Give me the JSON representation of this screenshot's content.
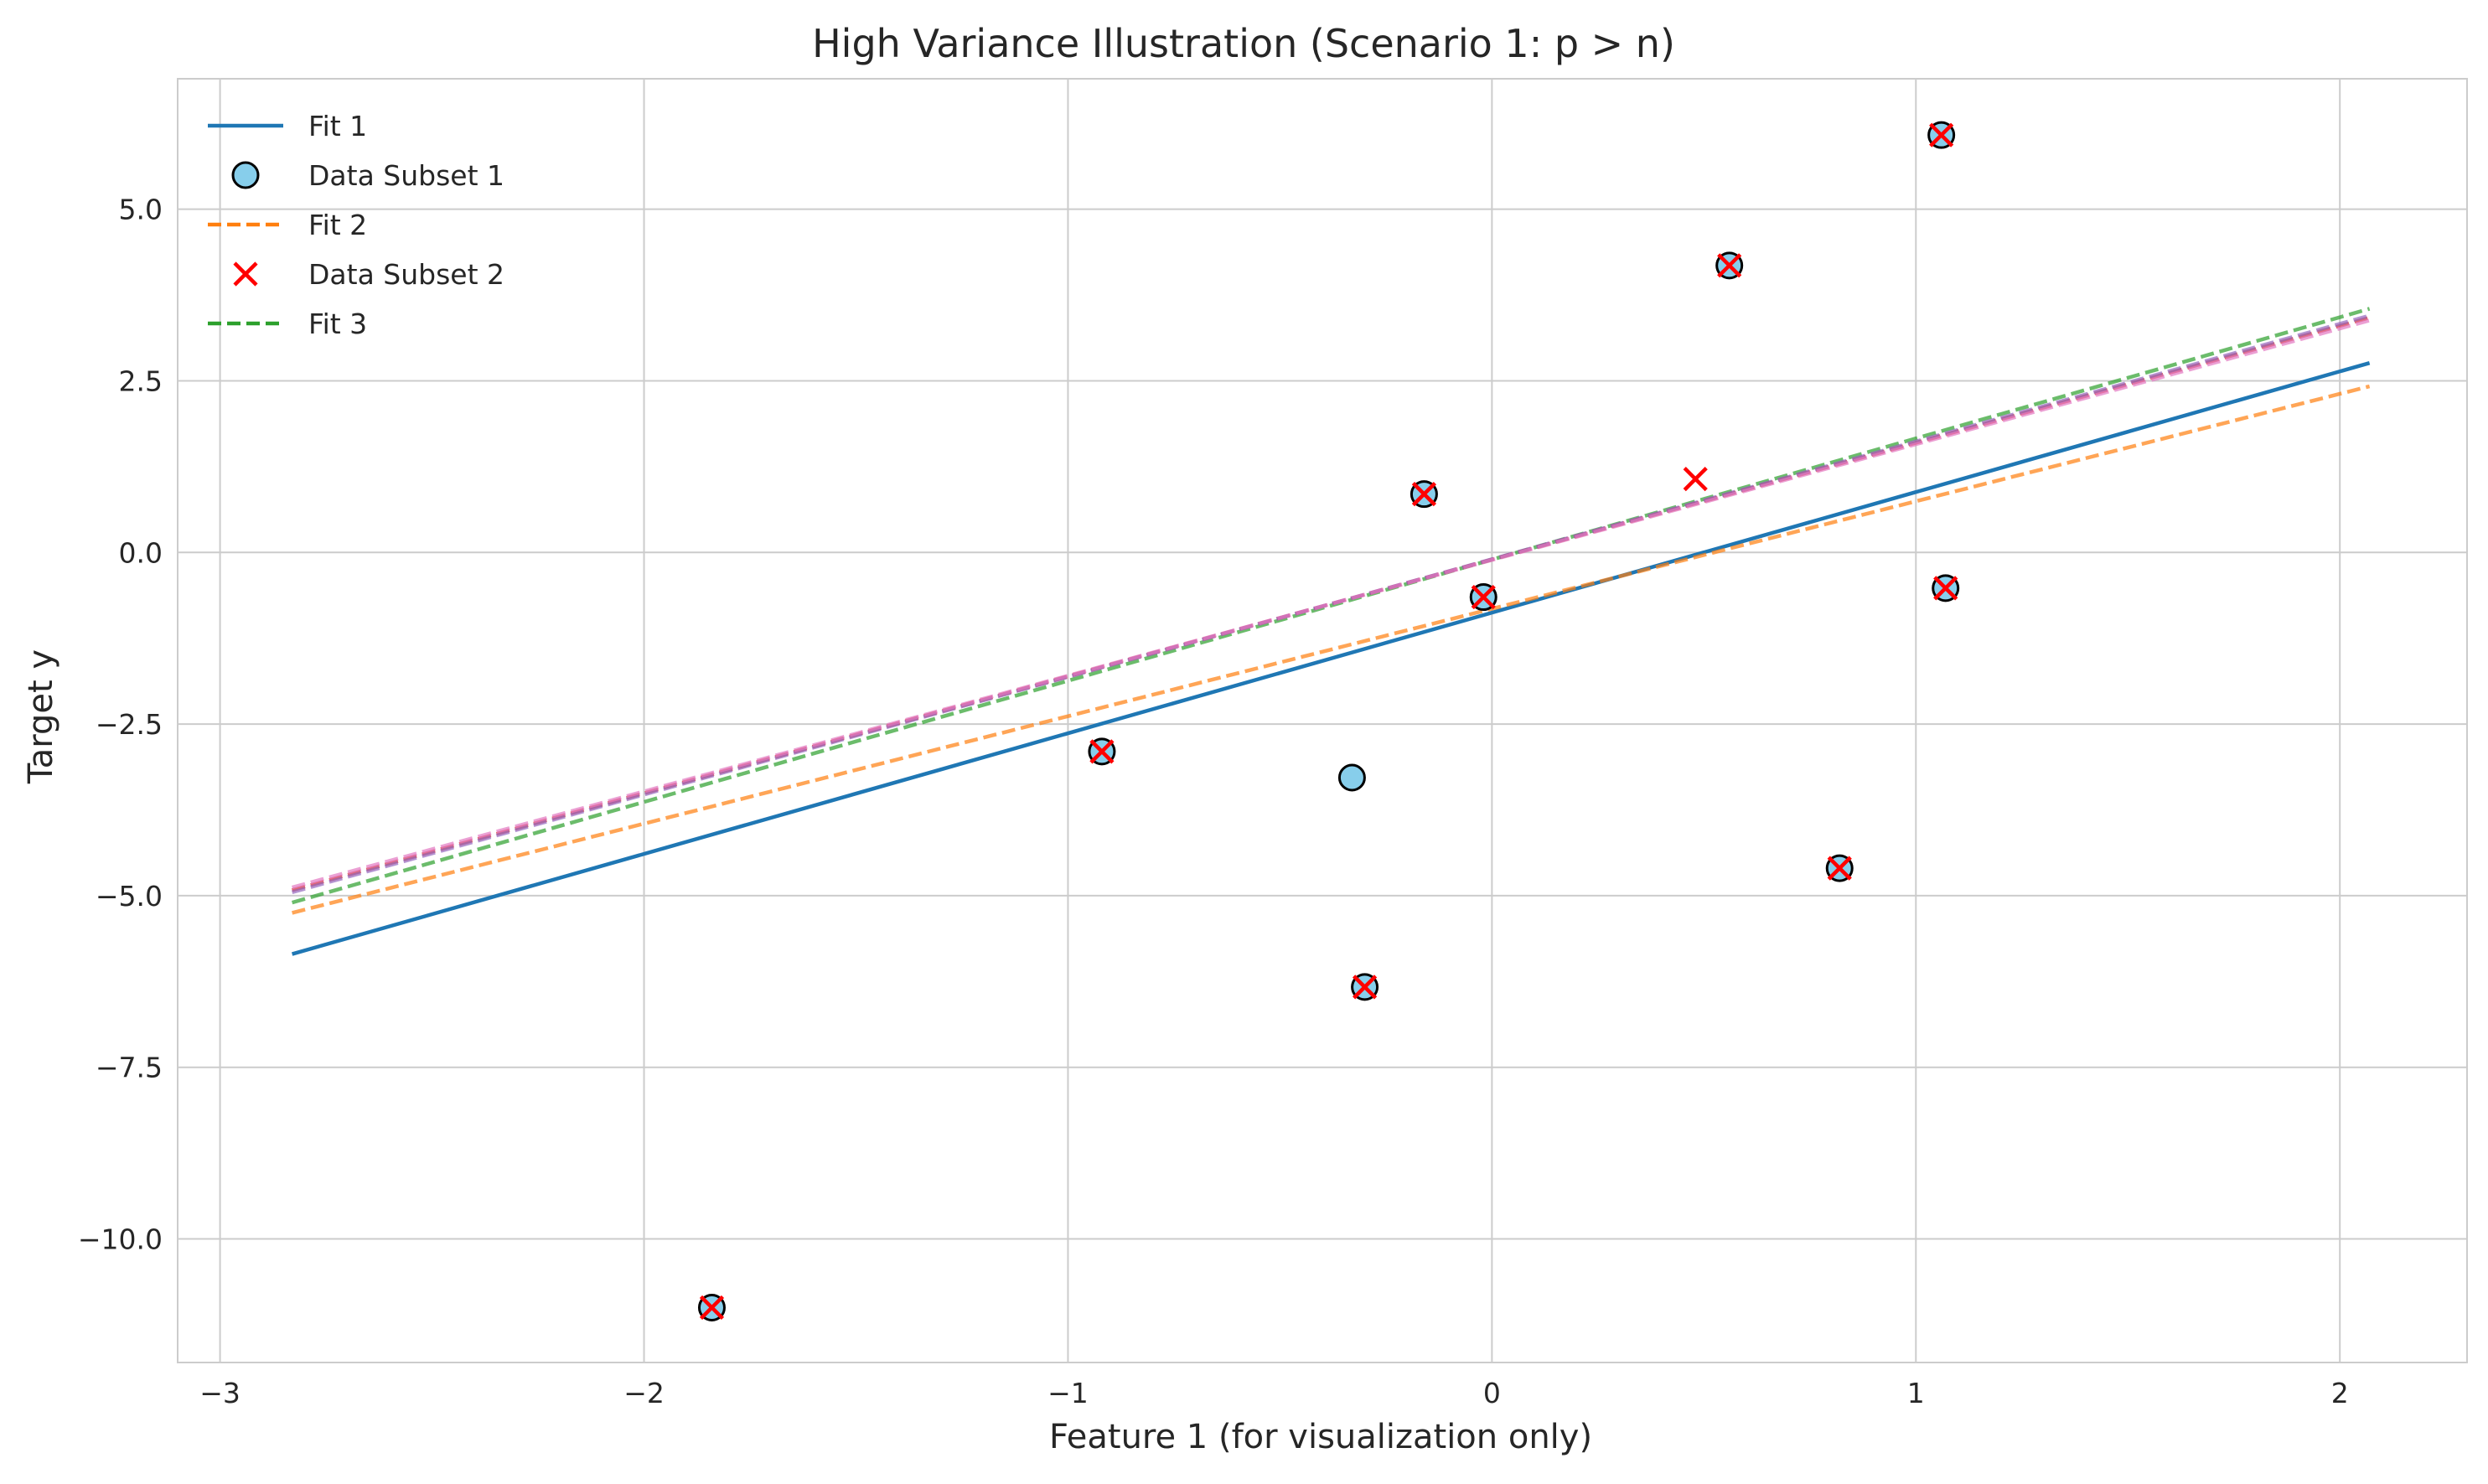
{
  "chart_data": {
    "type": "scatter",
    "title": "High Variance Illustration (Scenario 1: p > n)",
    "xlabel": "Feature 1 (for visualization only)",
    "ylabel": "Target y",
    "xlim": [
      -3.1,
      2.3
    ],
    "ylim": [
      -11.8,
      6.9
    ],
    "x_ticks": [
      -3,
      -2,
      -1,
      0,
      1,
      2
    ],
    "x_tick_labels": [
      "−3",
      "−2",
      "−1",
      "0",
      "1",
      "2"
    ],
    "y_ticks": [
      5.0,
      2.5,
      0.0,
      -2.5,
      -5.0,
      -7.5,
      -10.0
    ],
    "y_tick_labels": [
      "5.0",
      "2.5",
      "0.0",
      "−2.5",
      "−5.0",
      "−7.5",
      "−10.0"
    ],
    "grid": true,
    "legend_position": "top-left",
    "legend": [
      {
        "label": "Fit 1",
        "kind": "line",
        "color": "#1f77b4",
        "dash": "solid"
      },
      {
        "label": "Data Subset 1",
        "kind": "circle",
        "color": "#87ceeb"
      },
      {
        "label": "Fit 2",
        "kind": "line",
        "color": "#ff7f0e",
        "dash": "dashed"
      },
      {
        "label": "Data Subset 2",
        "kind": "cross",
        "color": "#ff0000"
      },
      {
        "label": "Fit 3",
        "kind": "line",
        "color": "#2ca02c",
        "dash": "dashed"
      }
    ],
    "lines": [
      {
        "name": "Fit 1",
        "color": "#1f77b4",
        "dash": "solid",
        "opacity": 1.0,
        "x": [
          -2.83,
          2.07
        ],
        "y": [
          -5.85,
          2.76
        ]
      },
      {
        "name": "Fit 2",
        "color": "#ff7f0e",
        "dash": "dashed",
        "opacity": 0.7,
        "x": [
          -2.83,
          2.07
        ],
        "y": [
          -5.25,
          2.42
        ]
      },
      {
        "name": "Fit 3",
        "color": "#2ca02c",
        "dash": "dashed",
        "opacity": 0.7,
        "x": [
          -2.83,
          2.07
        ],
        "y": [
          -5.1,
          3.55
        ]
      },
      {
        "name": "",
        "color": "#d62728",
        "dash": "dashed",
        "opacity": 0.7,
        "x": [
          -2.83,
          2.07
        ],
        "y": [
          -4.92,
          3.42
        ]
      },
      {
        "name": "",
        "color": "#9467bd",
        "dash": "dashed",
        "opacity": 0.7,
        "x": [
          -2.83,
          2.07
        ],
        "y": [
          -4.95,
          3.45
        ]
      },
      {
        "name": "",
        "color": "#e377c2",
        "dash": "dashed",
        "opacity": 0.7,
        "x": [
          -2.83,
          2.07
        ],
        "y": [
          -4.88,
          3.38
        ]
      }
    ],
    "series": [
      {
        "name": "Data Subset 1",
        "marker": "circle",
        "color": "#87ceeb",
        "edge_color": "#000000",
        "x": [
          -1.84,
          -0.92,
          -0.16,
          -0.02,
          0.56,
          1.06,
          1.07,
          0.82,
          -0.3,
          -0.33
        ],
        "y": [
          -11.0,
          -2.9,
          0.85,
          -0.65,
          4.18,
          6.08,
          -0.52,
          -4.6,
          -6.33,
          -3.28
        ]
      },
      {
        "name": "Data Subset 2",
        "marker": "cross",
        "color": "#ff0000",
        "x": [
          -1.84,
          -0.92,
          -0.16,
          -0.02,
          0.56,
          1.06,
          1.07,
          0.82,
          -0.3,
          0.48
        ],
        "y": [
          -11.0,
          -2.9,
          0.85,
          -0.65,
          4.18,
          6.08,
          -0.52,
          -4.6,
          -6.33,
          1.07
        ]
      }
    ]
  }
}
